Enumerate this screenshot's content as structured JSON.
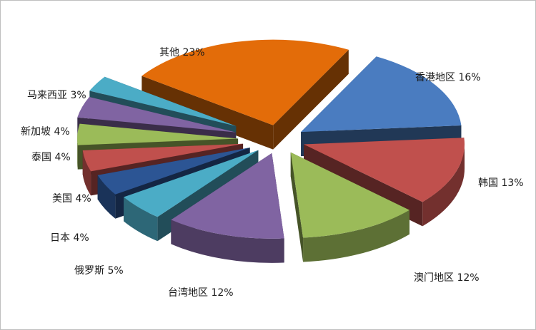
{
  "chart_data": {
    "type": "pie",
    "style": "3d-exploded",
    "title": "",
    "categories": [
      "香港地区",
      "韩国",
      "澳门地区",
      "台湾地区",
      "俄罗斯",
      "日本",
      "美国",
      "泰国",
      "新加坡",
      "马来西亚",
      "其他"
    ],
    "values": [
      16,
      13,
      12,
      12,
      5,
      4,
      4,
      4,
      4,
      3,
      23
    ],
    "unit": "%",
    "labels": [
      "香港地区 16%",
      "韩国 13%",
      "澳门地区 12%",
      "台湾地区 12%",
      "俄罗斯 5%",
      "日本 4%",
      "美国 4%",
      "泰国 4%",
      "新加坡 4%",
      "马来西亚 3%",
      "其他 23%"
    ],
    "colors": [
      "#4a7cc0",
      "#c0504d",
      "#9bbb59",
      "#8064a2",
      "#4bacc6",
      "#2c5594",
      "#c0504d",
      "#9bbb59",
      "#8064a2",
      "#4bacc6",
      "#e36c09"
    ],
    "legend": "none"
  }
}
